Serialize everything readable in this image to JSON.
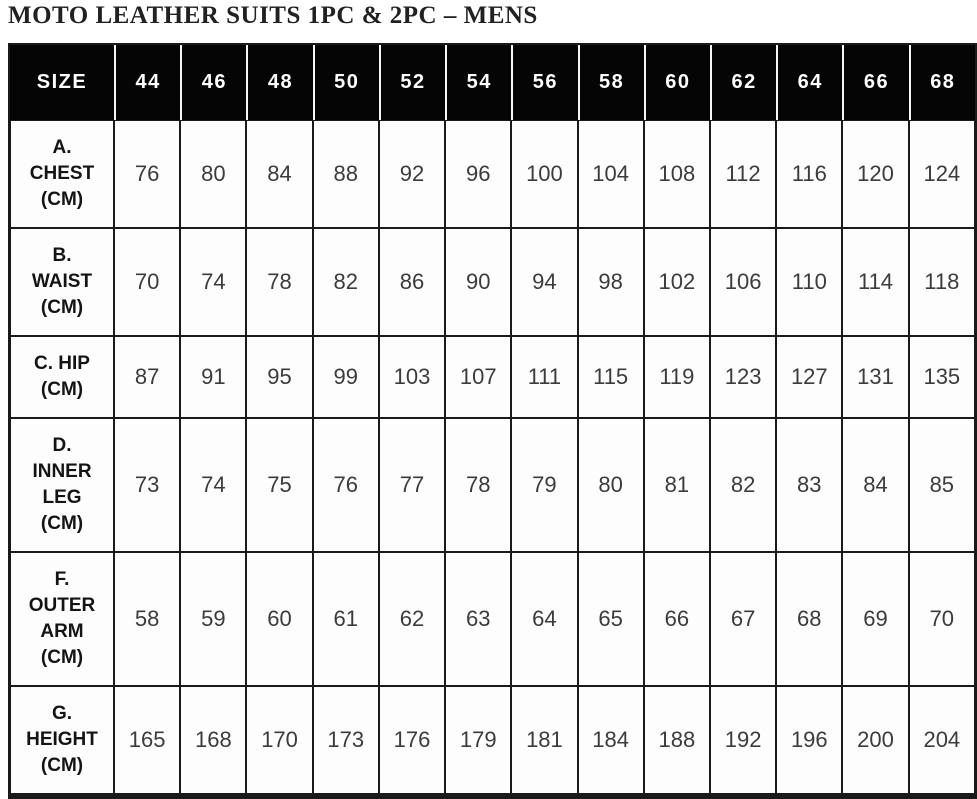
{
  "title": "MOTO LEATHER SUITS 1PC & 2PC – MENS",
  "table": {
    "size_header": "SIZE",
    "sizes": [
      "44",
      "46",
      "48",
      "50",
      "52",
      "54",
      "56",
      "58",
      "60",
      "62",
      "64",
      "66",
      "68"
    ],
    "rows": [
      {
        "label_lines": [
          "A.",
          "CHEST",
          "(CM)"
        ],
        "values": [
          "76",
          "80",
          "84",
          "88",
          "92",
          "96",
          "100",
          "104",
          "108",
          "112",
          "116",
          "120",
          "124"
        ]
      },
      {
        "label_lines": [
          "B.",
          "WAIST",
          "(CM)"
        ],
        "values": [
          "70",
          "74",
          "78",
          "82",
          "86",
          "90",
          "94",
          "98",
          "102",
          "106",
          "110",
          "114",
          "118"
        ]
      },
      {
        "label_lines": [
          "C. HIP",
          "(CM)"
        ],
        "values": [
          "87",
          "91",
          "95",
          "99",
          "103",
          "107",
          "111",
          "115",
          "119",
          "123",
          "127",
          "131",
          "135"
        ]
      },
      {
        "label_lines": [
          "D.",
          "INNER",
          "LEG",
          "(CM)"
        ],
        "values": [
          "73",
          "74",
          "75",
          "76",
          "77",
          "78",
          "79",
          "80",
          "81",
          "82",
          "83",
          "84",
          "85"
        ]
      },
      {
        "label_lines": [
          "F.",
          "OUTER",
          "ARM",
          "(CM)"
        ],
        "values": [
          "58",
          "59",
          "60",
          "61",
          "62",
          "63",
          "64",
          "65",
          "66",
          "67",
          "68",
          "69",
          "70"
        ]
      },
      {
        "label_lines": [
          "G.",
          "HEIGHT",
          "(CM)"
        ],
        "values": [
          "165",
          "168",
          "170",
          "173",
          "176",
          "179",
          "181",
          "184",
          "188",
          "192",
          "196",
          "200",
          "204"
        ]
      }
    ]
  },
  "colors": {
    "header_bg": "#050505",
    "header_text": "#ffffff",
    "cell_bg": "#fdfdfd",
    "border": "#1a1a1a",
    "title_text": "#212121",
    "label_text": "#141414",
    "value_text": "#3b3b3b"
  }
}
